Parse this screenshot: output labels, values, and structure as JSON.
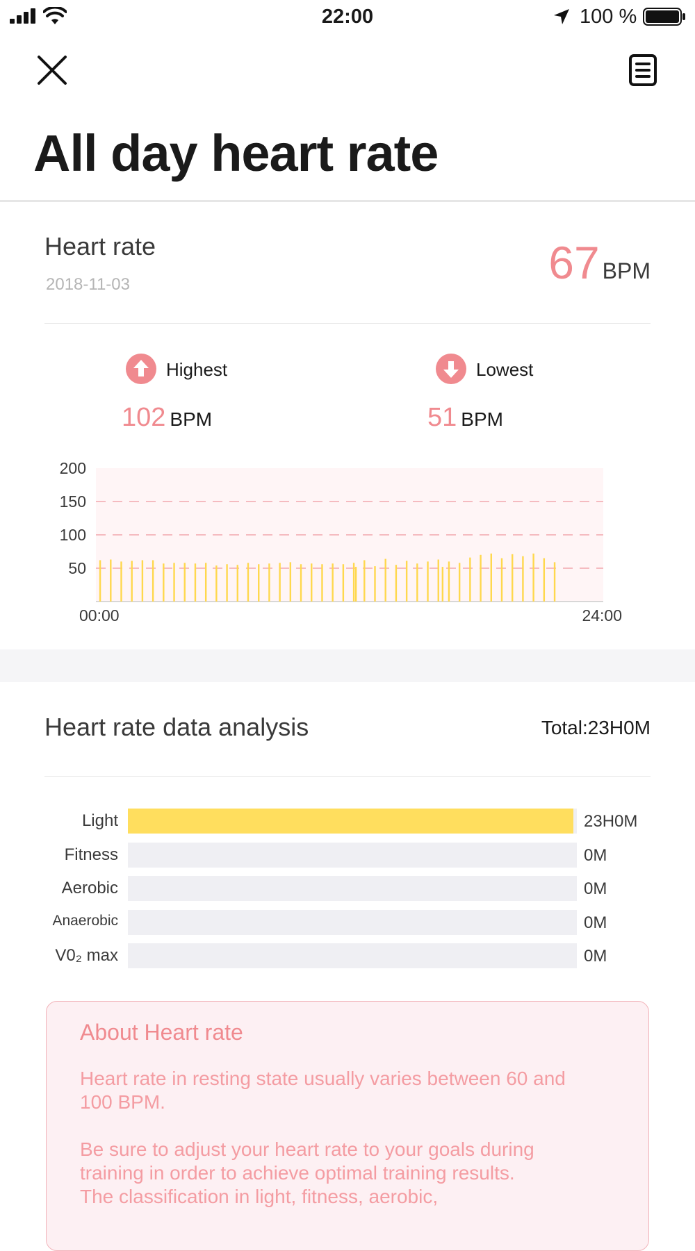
{
  "status_bar": {
    "time": "22:00",
    "battery": "100 %"
  },
  "header": {
    "title": "All day heart rate"
  },
  "heart_rate": {
    "label": "Heart rate",
    "date": "2018-11-03",
    "current_value": "67",
    "unit": "BPM",
    "highest": {
      "label": "Highest",
      "value": "102",
      "unit": "BPM"
    },
    "lowest": {
      "label": "Lowest",
      "value": "51",
      "unit": "BPM"
    }
  },
  "colors": {
    "accent": "#f08a8f",
    "bar": "#ffd84d",
    "chart_bg": "#fff5f6",
    "zone_fill": "#ffde5e",
    "zone_track": "#efeff3"
  },
  "chart_data": {
    "type": "bar",
    "ylim": [
      0,
      200
    ],
    "y_ticks": [
      "200",
      "150",
      "100",
      "50"
    ],
    "x_ticks": [
      "00:00",
      "24:00"
    ],
    "xlim_hours": [
      0,
      24
    ],
    "x_hours": [
      0.2,
      0.7,
      1.2,
      1.7,
      2.2,
      2.7,
      3.2,
      3.7,
      4.2,
      4.7,
      5.2,
      5.7,
      6.2,
      6.7,
      7.2,
      7.7,
      8.2,
      8.7,
      9.2,
      9.7,
      10.2,
      10.7,
      11.2,
      11.7,
      12.2,
      12.3,
      12.7,
      13.2,
      13.7,
      14.2,
      14.7,
      15.2,
      15.7,
      16.2,
      16.4,
      16.7,
      17.2,
      17.7,
      18.2,
      18.7,
      19.2,
      19.7,
      20.2,
      20.7,
      21.2,
      21.7
    ],
    "values": [
      62,
      63,
      60,
      61,
      62,
      62,
      57,
      58,
      58,
      57,
      58,
      54,
      56,
      55,
      58,
      56,
      57,
      58,
      59,
      56,
      57,
      56,
      57,
      56,
      58,
      52,
      62,
      53,
      64,
      55,
      61,
      57,
      60,
      63,
      52,
      60,
      58,
      66,
      70,
      72,
      65,
      71,
      68,
      72,
      65,
      59
    ]
  },
  "analysis": {
    "title": "Heart rate data analysis",
    "total": "Total:23H0M",
    "zones": [
      {
        "label": "Light",
        "value": "23H0M",
        "fraction": 0.993
      },
      {
        "label": "Fitness",
        "value": "0M",
        "fraction": 0
      },
      {
        "label": "Aerobic",
        "value": "0M",
        "fraction": 0
      },
      {
        "label": "Anaerobic",
        "value": "0M",
        "fraction": 0
      },
      {
        "label": "V0₂ max",
        "value": "0M",
        "fraction": 0
      }
    ]
  },
  "about": {
    "title": "About Heart rate",
    "paragraph1": "Heart rate in resting state usually varies between 60 and 100 BPM.",
    "paragraph2": "Be sure to adjust your heart rate to your goals during training in order to achieve optimal training results.",
    "paragraph3": "The classification in light, fitness, aerobic,"
  }
}
